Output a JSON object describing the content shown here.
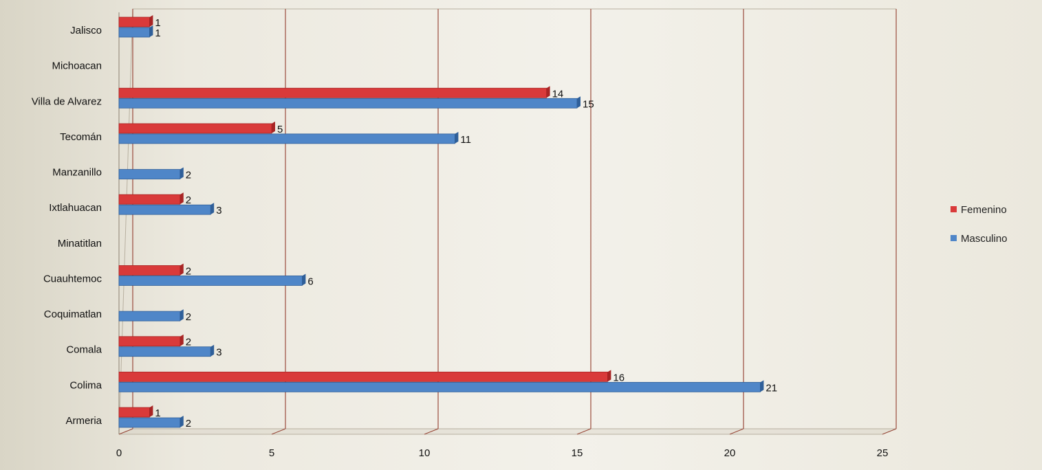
{
  "chart_data": {
    "type": "bar",
    "orientation": "horizontal",
    "categories": [
      "Jalisco",
      "Michoacan",
      "Villa de Alvarez",
      "Tecomán",
      "Manzanillo",
      "Ixtlahuacan",
      "Minatitlan",
      "Cuauhtemoc",
      "Coquimatlan",
      "Comala",
      "Colima",
      "Armeria"
    ],
    "series": [
      {
        "name": "Femenino",
        "color": "#d93a3a",
        "values": [
          1,
          0,
          14,
          5,
          0,
          2,
          0,
          2,
          0,
          2,
          16,
          1
        ]
      },
      {
        "name": "Masculino",
        "color": "#4f86c8",
        "values": [
          1,
          0,
          15,
          11,
          2,
          3,
          0,
          6,
          2,
          3,
          21,
          2
        ]
      }
    ],
    "xlim": [
      0,
      25
    ],
    "x_ticks": [
      0,
      5,
      10,
      15,
      20,
      25
    ],
    "grid": true,
    "legend": "right",
    "title": "",
    "xlabel": "",
    "ylabel": ""
  }
}
